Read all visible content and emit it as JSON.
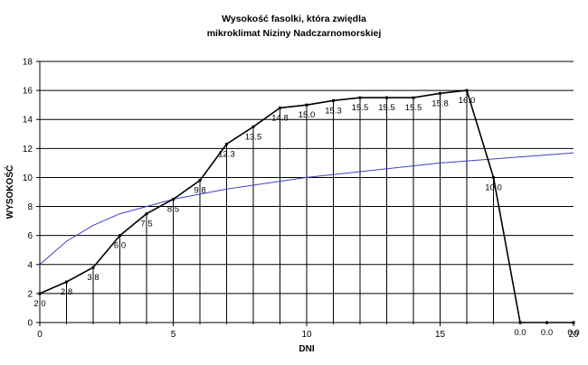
{
  "chart_data": {
    "type": "line",
    "title_lines": [
      "Wysokość fasolki, która zwiędla",
      "mikroklimat Niziny Nadczarnomorskiej"
    ],
    "xlabel": "DNI",
    "ylabel": "WYSOKOŚĆ",
    "xlim": [
      0,
      20
    ],
    "ylim": [
      0,
      18
    ],
    "x_ticks": [
      "0",
      "5",
      "10",
      "15",
      "20"
    ],
    "y_ticks": [
      "0",
      "2",
      "4",
      "6",
      "8",
      "10",
      "12",
      "14",
      "16",
      "18"
    ],
    "grid": true,
    "drop_lines": true,
    "series": [
      {
        "color": "#000000",
        "points": [
          {
            "x": 0,
            "y": 2.0,
            "label": "2.0"
          },
          {
            "x": 1,
            "y": 2.8,
            "label": "2.8"
          },
          {
            "x": 2,
            "y": 3.8,
            "label": "3.8"
          },
          {
            "x": 3,
            "y": 6.0,
            "label": "6.0"
          },
          {
            "x": 4,
            "y": 7.5,
            "label": "7.5"
          },
          {
            "x": 5,
            "y": 8.5,
            "label": "8.5"
          },
          {
            "x": 6,
            "y": 9.8,
            "label": "9.8"
          },
          {
            "x": 7,
            "y": 12.3,
            "label": "12.3"
          },
          {
            "x": 8,
            "y": 13.5,
            "label": "13.5"
          },
          {
            "x": 9,
            "y": 14.8,
            "label": "14.8"
          },
          {
            "x": 10,
            "y": 15.0,
            "label": "15.0"
          },
          {
            "x": 11,
            "y": 15.3,
            "label": "15.3"
          },
          {
            "x": 12,
            "y": 15.5,
            "label": "15.5"
          },
          {
            "x": 13,
            "y": 15.5,
            "label": "15.5"
          },
          {
            "x": 14,
            "y": 15.5,
            "label": "15.5"
          },
          {
            "x": 15,
            "y": 15.8,
            "label": "15.8"
          },
          {
            "x": 16,
            "y": 16.0,
            "label": "16.0"
          },
          {
            "x": 17,
            "y": 10.0,
            "label": "10.0"
          },
          {
            "x": 18,
            "y": 0.0,
            "label": "0.0"
          },
          {
            "x": 19,
            "y": 0.0,
            "label": "0.0"
          },
          {
            "x": 20,
            "y": 0.0,
            "label": "0.0"
          }
        ]
      },
      {
        "type": "trendline",
        "color": "#3f3fcc",
        "trend": "logarithmic",
        "points": [
          {
            "x": 0,
            "y": 4.0
          },
          {
            "x": 1,
            "y": 5.6
          },
          {
            "x": 2,
            "y": 6.7
          },
          {
            "x": 3,
            "y": 7.5
          },
          {
            "x": 5,
            "y": 8.5
          },
          {
            "x": 7,
            "y": 9.2
          },
          {
            "x": 10,
            "y": 10.0
          },
          {
            "x": 15,
            "y": 11.0
          },
          {
            "x": 20,
            "y": 11.7
          }
        ]
      }
    ]
  }
}
